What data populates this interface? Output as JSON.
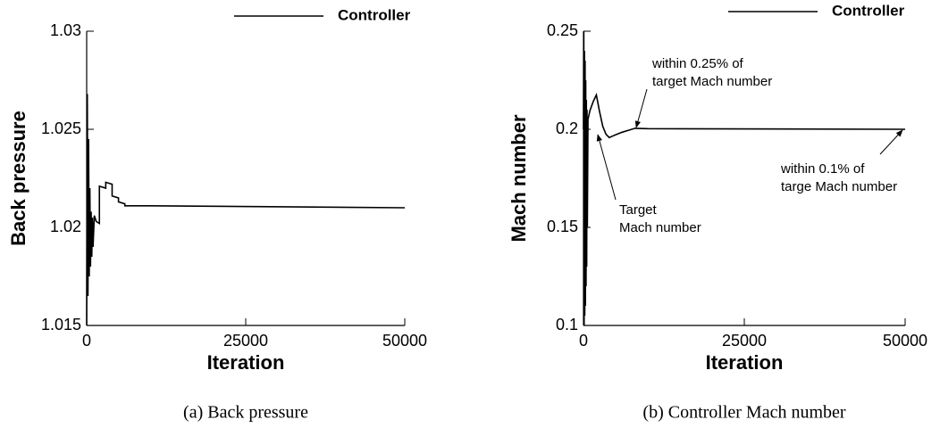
{
  "chart_data": [
    {
      "type": "line",
      "caption": "(a) Back pressure",
      "xlabel": "Iteration",
      "ylabel": "Back pressure",
      "xlim": [
        0,
        50000
      ],
      "xticks": [
        0,
        25000,
        50000
      ],
      "ylim": [
        1.015,
        1.03
      ],
      "yticks": [
        1.015,
        1.02,
        1.025,
        1.03
      ],
      "x": [
        0,
        100,
        200,
        300,
        400,
        500,
        600,
        700,
        800,
        900,
        1000,
        1200,
        1500,
        2000,
        2000,
        3000,
        3000,
        4000,
        4000,
        5000,
        5000,
        6000,
        6000,
        10000,
        50000
      ],
      "series": [
        {
          "name": "Controller",
          "color": "#000000",
          "values": [
            1.015,
            1.0268,
            1.0165,
            1.0245,
            1.0175,
            1.022,
            1.018,
            1.0208,
            1.0185,
            1.0205,
            1.019,
            1.0206,
            1.0203,
            1.0202,
            1.0221,
            1.022,
            1.0223,
            1.0222,
            1.0216,
            1.0215,
            1.0213,
            1.0212,
            1.0211,
            1.0211,
            1.021
          ]
        }
      ]
    },
    {
      "type": "line",
      "caption": "(b) Controller Mach number",
      "xlabel": "Iteration",
      "ylabel": "Mach number",
      "xlim": [
        0,
        50000
      ],
      "xticks": [
        0,
        25000,
        50000
      ],
      "ylim": [
        0.1,
        0.25
      ],
      "yticks": [
        0.1,
        0.15,
        0.2,
        0.25
      ],
      "x": [
        0,
        50,
        100,
        150,
        200,
        250,
        300,
        350,
        400,
        450,
        500,
        550,
        600,
        700,
        1000,
        1500,
        2000,
        2500,
        3000,
        3500,
        4000,
        4500,
        5000,
        6000,
        7000,
        8000,
        10000,
        50000
      ],
      "series": [
        {
          "name": "Controller",
          "color": "#000000",
          "values": [
            0.2,
            0.25,
            0.1,
            0.24,
            0.105,
            0.235,
            0.11,
            0.225,
            0.12,
            0.215,
            0.13,
            0.21,
            0.15,
            0.205,
            0.2095,
            0.214,
            0.2175,
            0.209,
            0.2015,
            0.1975,
            0.1958,
            0.1965,
            0.1972,
            0.1985,
            0.1995,
            0.2005,
            0.2003,
            0.2
          ]
        }
      ],
      "annotations": [
        {
          "lines": [
            "within 0.25% of",
            "target Mach number"
          ]
        },
        {
          "lines": [
            "within 0.1% of",
            "targe Mach number"
          ]
        },
        {
          "lines": [
            "Target",
            "Mach number"
          ]
        }
      ]
    }
  ]
}
